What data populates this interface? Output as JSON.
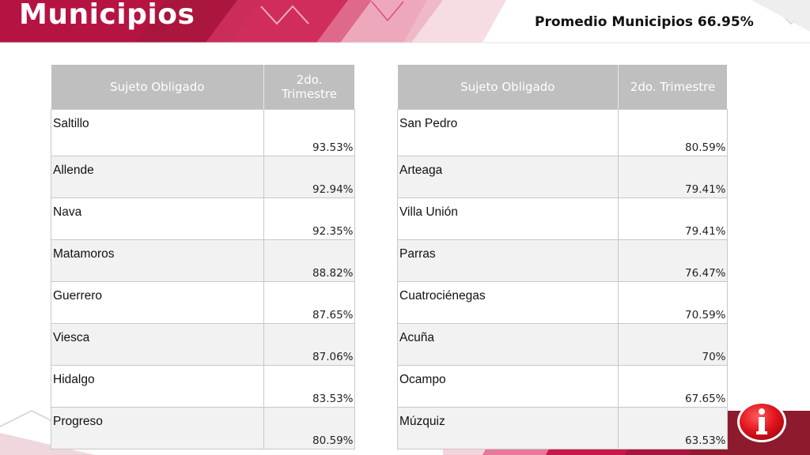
{
  "slide": {
    "title": "Municipios",
    "average_label": "Promedio Municipios 66.95%"
  },
  "tables": {
    "headers": {
      "col1": "Sujeto Obligado",
      "col2": "2do. Trimestre"
    },
    "left": [
      {
        "name": "Saltillo",
        "value": "93.53%"
      },
      {
        "name": "Allende",
        "value": "92.94%"
      },
      {
        "name": "Nava",
        "value": "92.35%"
      },
      {
        "name": "Matamoros",
        "value": "88.82%"
      },
      {
        "name": "Guerrero",
        "value": "87.65%"
      },
      {
        "name": "Viesca",
        "value": "87.06%"
      },
      {
        "name": "Hidalgo",
        "value": "83.53%"
      },
      {
        "name": "Progreso",
        "value": "80.59%"
      }
    ],
    "right": [
      {
        "name": "San Pedro",
        "value": "80.59%"
      },
      {
        "name": "Arteaga",
        "value": "79.41%"
      },
      {
        "name": "Villa Unión",
        "value": "79.41%"
      },
      {
        "name": "Parras",
        "value": "76.47%"
      },
      {
        "name": "Cuatrociénegas",
        "value": "70.59%"
      },
      {
        "name": "Acuña",
        "value": "70%"
      },
      {
        "name": "Ocampo",
        "value": "67.65%"
      },
      {
        "name": "Múzquiz",
        "value": "63.53%"
      }
    ]
  },
  "colors": {
    "accent_crimson": "#c8174a",
    "accent_dark": "#8e1a2e",
    "header_gray": "#bfbfbf"
  },
  "icons": {
    "logo": "info-logo-icon"
  }
}
